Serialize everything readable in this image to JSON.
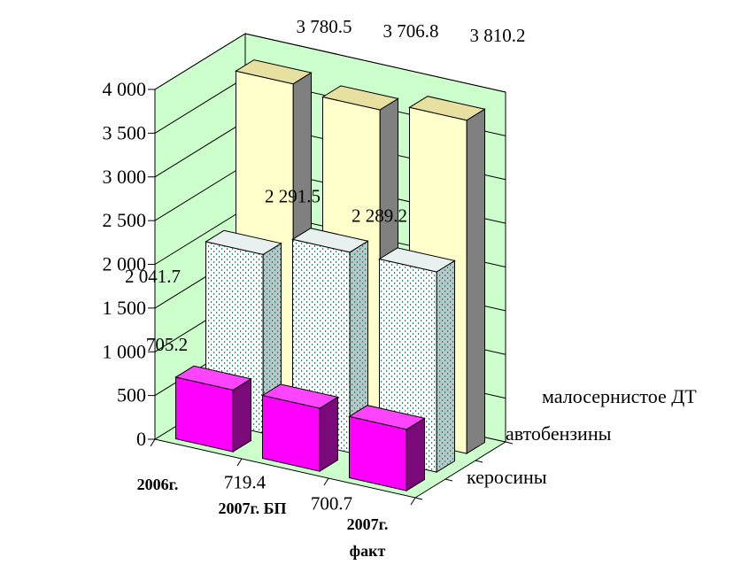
{
  "chart_data": {
    "type": "bar",
    "categories": [
      "2006г.",
      "2007г.  БП",
      "2007г. факт"
    ],
    "series": [
      {
        "name": "керосины",
        "values": [
          705.2,
          719.4,
          700.7
        ],
        "color": "#ff00ff"
      },
      {
        "name": "автобензины",
        "values": [
          2041.7,
          2291.5,
          2289.2
        ],
        "color": "#ccffff"
      },
      {
        "name": "малосернистое ДТ",
        "values": [
          3780.5,
          3706.8,
          3810.2
        ],
        "color": "#ffffcc"
      }
    ],
    "value_labels": [
      [
        "705.2",
        "719.4",
        "700.7"
      ],
      [
        "2 041.7",
        "2 291.5",
        "2 289.2"
      ],
      [
        "3 780.5",
        "3 706.8",
        "3 810.2"
      ]
    ],
    "ytick_labels": [
      "0",
      "500",
      "1 000",
      "1 500",
      "2 000",
      "2 500",
      "3 000",
      "3 500",
      "4 000"
    ],
    "ylim": [
      0,
      4000
    ],
    "y_step": 500,
    "grid": true,
    "projection": "3d",
    "wall_color": "#ccffcc",
    "title": "",
    "xlabel": "",
    "ylabel": ""
  }
}
